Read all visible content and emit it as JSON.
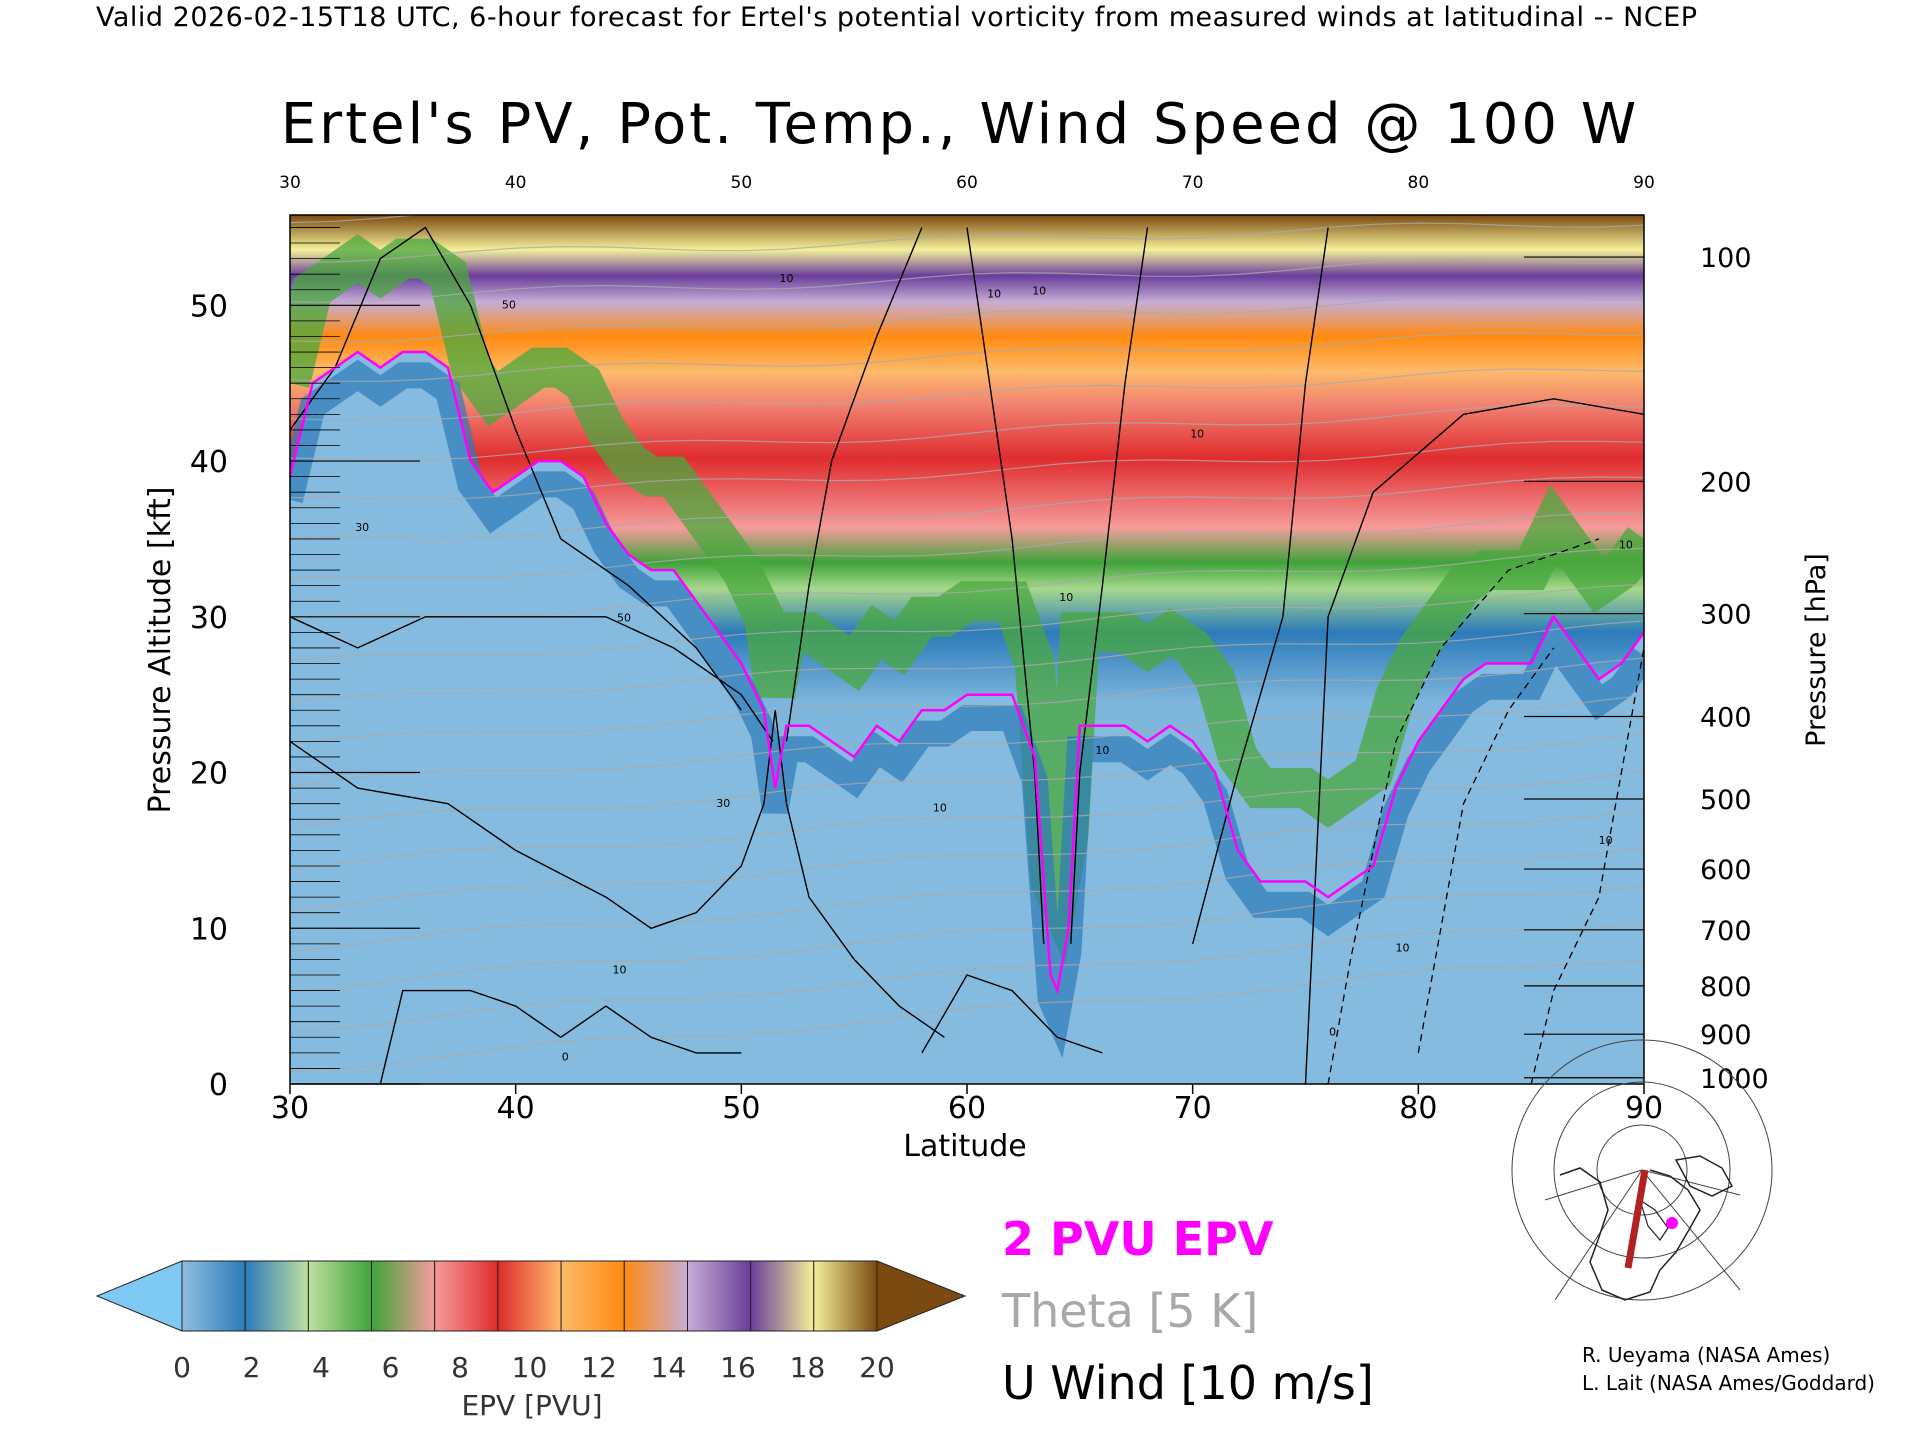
{
  "header": {
    "valid_line": "Valid 2026-02-15T18 UTC, 6-hour forecast for Ertel's potential vorticity from measured winds at latitudinal -- NCEP",
    "title": "Ertel's PV, Pot. Temp., Wind Speed @ 100 W"
  },
  "chart_data": {
    "type": "heatmap",
    "title": "Ertel's PV, Pot. Temp., Wind Speed @ 100 W",
    "xlabel": "Latitude",
    "ylabel": "Pressure Altitude [kft]",
    "y2label": "Pressure [hPa]",
    "xlim": [
      30,
      90
    ],
    "ylim": [
      0,
      55.8
    ],
    "x_ticks": [
      30,
      40,
      50,
      60,
      70,
      80,
      90
    ],
    "y_ticks": [
      0,
      10,
      20,
      30,
      40,
      50
    ],
    "pressure_ticks": [
      {
        "label": "100",
        "kft": 53.1
      },
      {
        "label": "200",
        "kft": 38.7
      },
      {
        "label": "300",
        "kft": 30.2
      },
      {
        "label": "400",
        "kft": 23.6
      },
      {
        "label": "500",
        "kft": 18.3
      },
      {
        "label": "600",
        "kft": 13.8
      },
      {
        "label": "700",
        "kft": 9.9
      },
      {
        "label": "800",
        "kft": 6.3
      },
      {
        "label": "900",
        "kft": 3.2
      },
      {
        "label": "1000",
        "kft": 0.4
      }
    ],
    "tropopause_2pvu": {
      "name": "2 PVU EPV",
      "color": "#ff00ff",
      "lat": [
        30,
        31,
        32,
        33,
        34,
        35,
        36,
        37,
        38,
        39,
        40,
        41,
        42,
        43,
        44,
        45,
        46,
        47,
        48,
        49,
        50,
        51,
        51.5,
        52,
        53,
        54,
        55,
        56,
        57,
        58,
        59,
        60,
        61,
        62,
        63,
        63.7,
        64,
        64.5,
        65,
        66,
        67,
        68,
        69,
        70,
        71,
        72,
        73,
        74,
        75,
        76,
        77,
        78,
        79,
        80,
        81,
        82,
        83,
        84,
        85,
        86,
        87,
        88,
        89,
        90
      ],
      "kft": [
        39,
        45,
        46,
        47,
        46,
        47,
        47,
        46,
        40,
        38,
        39,
        40,
        40,
        39,
        36,
        34,
        33,
        33,
        31,
        29,
        27,
        24,
        19,
        23,
        23,
        22,
        21,
        23,
        22,
        24,
        24,
        25,
        25,
        25,
        21,
        7,
        6,
        10,
        23,
        23,
        23,
        22,
        23,
        22,
        20,
        15,
        13,
        13,
        13,
        12,
        13,
        14,
        19,
        22,
        24,
        26,
        27,
        27,
        27,
        30,
        28,
        26,
        27,
        29
      ]
    },
    "epv_colorbar": {
      "label": "EPV [PVU]",
      "ticks": [
        "0",
        "2",
        "4",
        "6",
        "8",
        "10",
        "12",
        "14",
        "16",
        "18",
        "20"
      ],
      "colors": [
        "#8ebfdf",
        "#2c7bba",
        "#bfe0a0",
        "#3ea339",
        "#f59c9b",
        "#e02c2e",
        "#fdba6a",
        "#ff8a10",
        "#c6aed6",
        "#6a3d9a",
        "#f5f09a"
      ],
      "under_color": "#7fc9f5",
      "over_color": "#7a4a10"
    },
    "contour_labels": [
      {
        "text": "50",
        "lat": 39.7,
        "kft": 49.8
      },
      {
        "text": "30",
        "lat": 33.2,
        "kft": 35.5
      },
      {
        "text": "50",
        "lat": 44.8,
        "kft": 29.7
      },
      {
        "text": "30",
        "lat": 49.2,
        "kft": 17.8
      },
      {
        "text": "10",
        "lat": 58.8,
        "kft": 17.5
      },
      {
        "text": "10",
        "lat": 44.6,
        "kft": 7.1
      },
      {
        "text": "10",
        "lat": 52.0,
        "kft": 51.5
      },
      {
        "text": "10",
        "lat": 61.2,
        "kft": 50.5
      },
      {
        "text": "10",
        "lat": 63.2,
        "kft": 50.7
      },
      {
        "text": "10",
        "lat": 70.2,
        "kft": 41.5
      },
      {
        "text": "10",
        "lat": 64.4,
        "kft": 31.0
      },
      {
        "text": "10",
        "lat": 66.0,
        "kft": 21.2
      },
      {
        "text": "10",
        "lat": 79.3,
        "kft": 8.5
      },
      {
        "text": "10",
        "lat": 88.3,
        "kft": 15.4
      },
      {
        "text": "10",
        "lat": 89.2,
        "kft": 34.4
      },
      {
        "text": "0",
        "lat": 76.2,
        "kft": 3.1
      },
      {
        "text": "0",
        "lat": 42.2,
        "kft": 1.5
      }
    ]
  },
  "legend": {
    "pv_label": "2 PVU EPV",
    "theta_label": "Theta [5 K]",
    "u_label": "U Wind [10 m/s]"
  },
  "credits": {
    "line1": "R. Ueyama (NASA Ames)",
    "line2": "L. Lait (NASA Ames/Goddard)"
  },
  "locator_map": {
    "section_color": "#b22222",
    "marker_color": "#ff00ff"
  }
}
